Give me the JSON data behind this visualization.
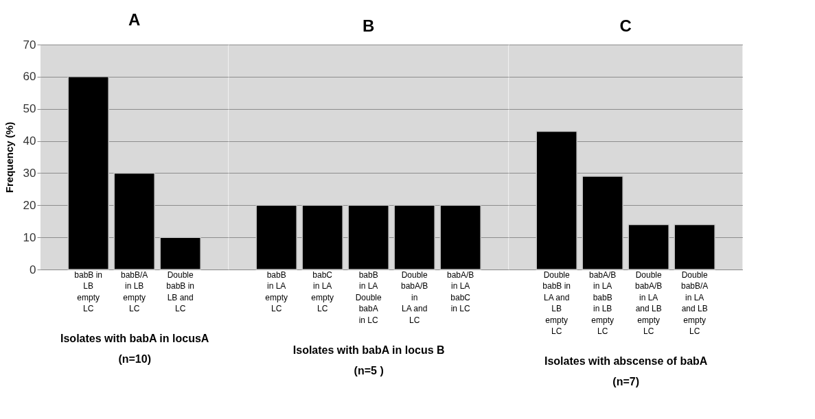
{
  "chart_data": [
    {
      "type": "bar",
      "title": "A",
      "xlabel": "Isolates with babA in locusA\n(n=10)",
      "ylabel": "Frequency (%)",
      "categories": [
        "babB in\nLB\nempty\nLC",
        "babB/A\nin LB\nempty\nLC",
        "Double\nbabB  in\nLB and\nLC"
      ],
      "values": [
        60,
        30,
        10
      ],
      "color": "#000000",
      "ylim": [
        0,
        70
      ],
      "yticks": [
        0,
        10,
        20,
        30,
        40,
        50,
        60,
        70
      ],
      "grid": "y"
    },
    {
      "type": "bar",
      "title": "B",
      "xlabel": "Isolates with babA in locus B\n(n=5 )",
      "categories": [
        "babB\nin LA\nempty\nLC",
        "babC\nin LA\nempty\nLC",
        "babB\nin LA\nDouble\nbabA\nin LC",
        "Double\nbabA/B\nin\nLA and\nLC",
        "babA/B\nin LA\nbabC\nin LC"
      ],
      "values": [
        20,
        20,
        20,
        20,
        20
      ],
      "color": "#000000",
      "ylim": [
        0,
        70
      ],
      "yticks": [
        0,
        10,
        20,
        30,
        40,
        50,
        60,
        70
      ],
      "grid": "y",
      "tick_labels": "x"
    },
    {
      "type": "bar",
      "title": "C",
      "xlabel": "Isolates with abscense of babA\n(n=7)",
      "categories": [
        "Double\nbabB  in\nLA and\nLB\nempty\nLC",
        "babA/B\nin LA\nbabB\nin LB\nempty\nLC",
        "Double\nbabA/B\nin LA\nand LB\nempty\nLC",
        "Double\nbabB/A\nin LA\nand LB\nempty\nLC"
      ],
      "values": [
        43,
        29,
        14,
        14
      ],
      "color": "#000000",
      "ylim": [
        0,
        70
      ],
      "yticks": [
        0,
        10,
        20,
        30,
        40,
        50,
        60,
        70
      ],
      "grid": "y",
      "tick_labels": "x"
    }
  ]
}
